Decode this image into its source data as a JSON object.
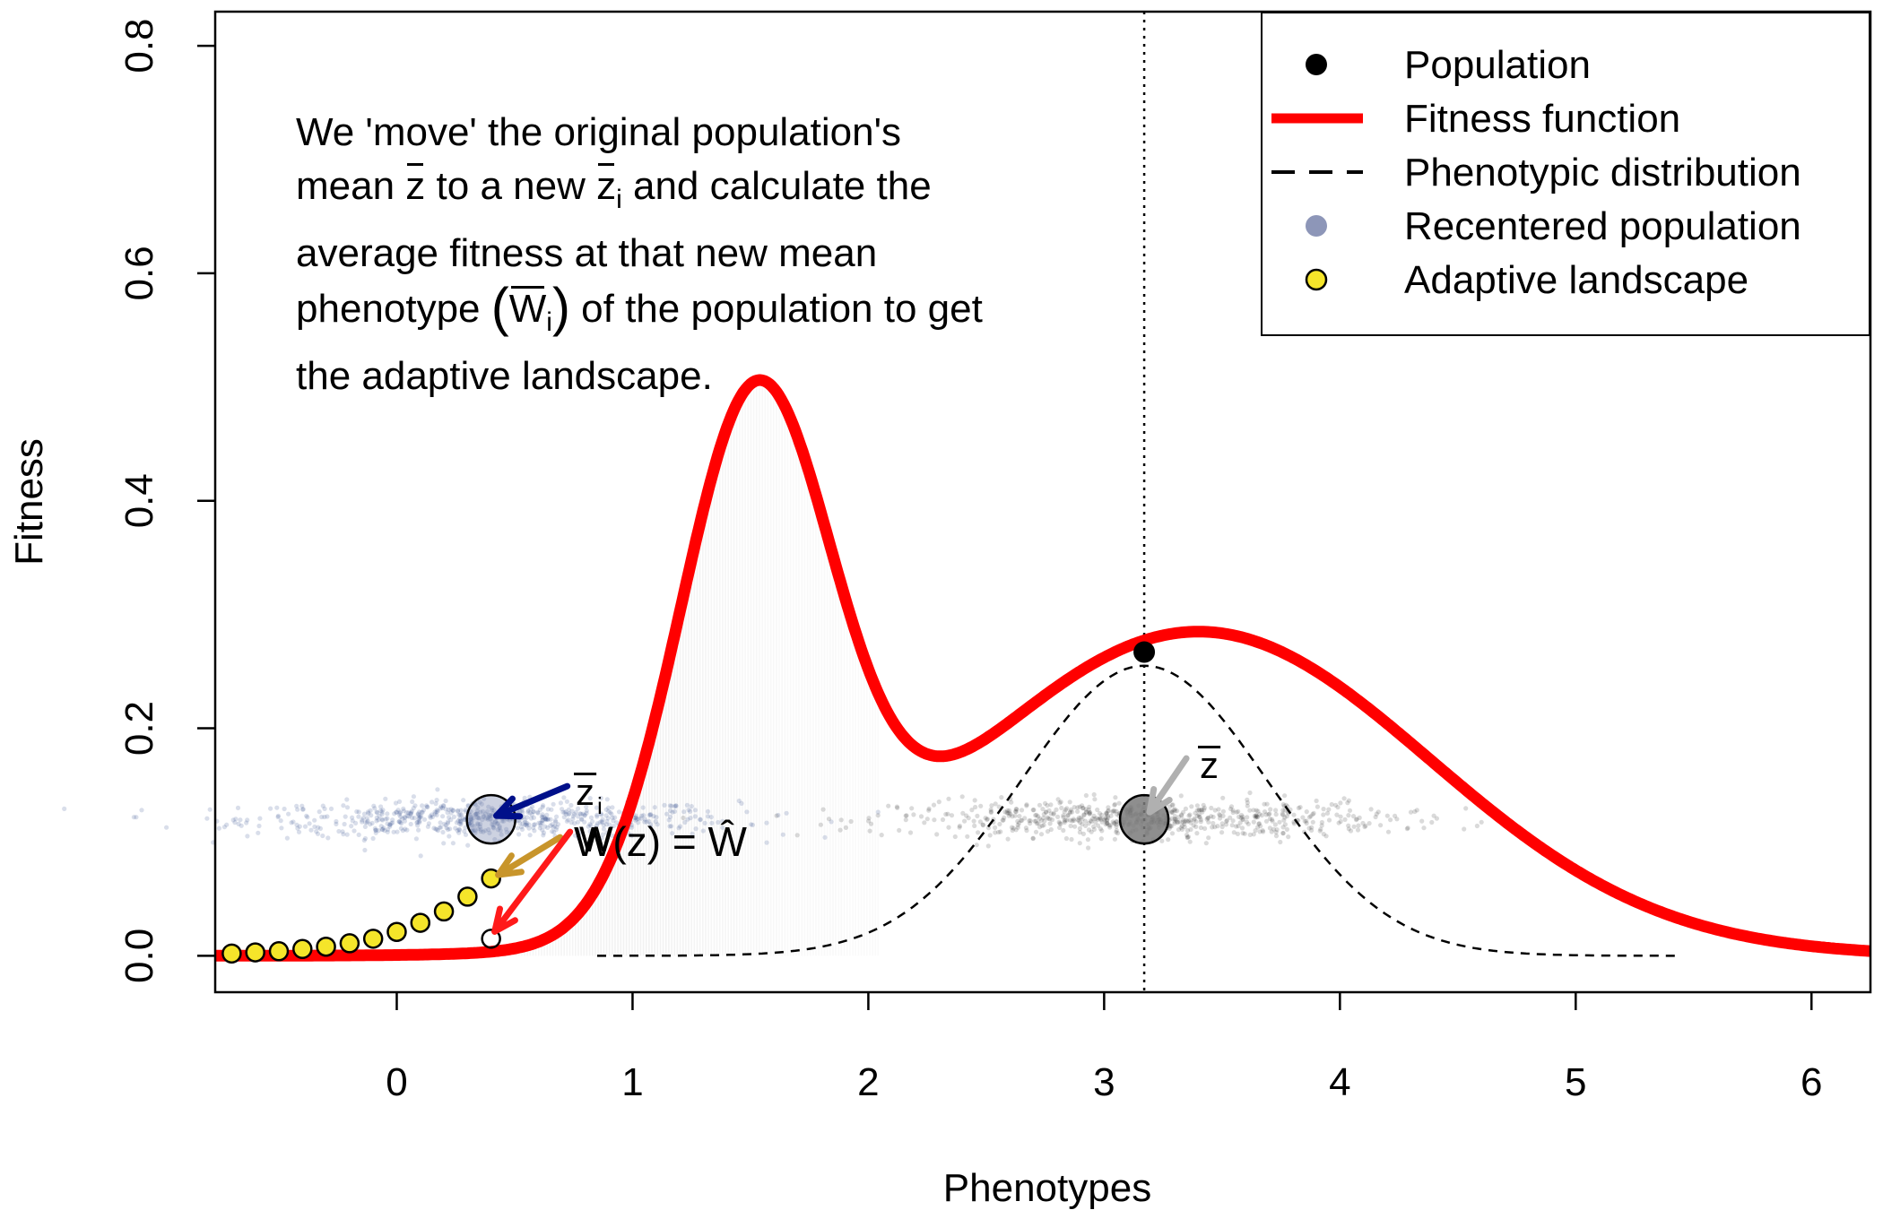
{
  "chart_data": {
    "type": "line",
    "xlabel": "Phenotypes",
    "ylabel": "Fitness",
    "xlim": [
      -0.77,
      6.25
    ],
    "ylim": [
      -0.032,
      0.83
    ],
    "x_ticks": [
      0,
      1,
      2,
      3,
      4,
      5,
      6
    ],
    "y_ticks": [
      0.0,
      0.2,
      0.4,
      0.6,
      0.8
    ],
    "x_tick_labels": [
      "0",
      "1",
      "2",
      "3",
      "4",
      "5",
      "6"
    ],
    "y_tick_labels": [
      "0.0",
      "0.2",
      "0.4",
      "0.6",
      "0.8"
    ],
    "fitness_function": {
      "components": [
        {
          "weight": 0.46,
          "mean": 1.52,
          "sd": 0.32
        },
        {
          "weight": 0.285,
          "mean": 3.4,
          "sd": 0.98
        }
      ]
    },
    "phenotypic_distribution": {
      "mean": 3.17,
      "sd": 0.52,
      "peak": 0.255,
      "x_range": [
        0.85,
        5.45
      ]
    },
    "population_mean": {
      "x": 3.17,
      "fitness": 0.267
    },
    "recentered_mean": {
      "x": 0.4,
      "fitness": 0.015
    },
    "adaptive_landscape_points": {
      "x": [
        -0.7,
        -0.6,
        -0.5,
        -0.4,
        -0.3,
        -0.2,
        -0.1,
        0.0,
        0.1,
        0.2,
        0.3,
        0.4
      ],
      "y": [
        0.002,
        0.003,
        0.004,
        0.006,
        0.008,
        0.011,
        0.015,
        0.021,
        0.029,
        0.039,
        0.052,
        0.068
      ]
    },
    "cloud_y": 0.12,
    "annotation": {
      "lines": [
        [
          "We 'move' the original population's"
        ],
        [
          "mean ",
          {
            "ovl": "z"
          },
          " to a new ",
          {
            "ovl": "z"
          },
          {
            "sub": "i"
          },
          " and calculate the"
        ],
        [
          "average fitness at that new mean"
        ],
        [
          "phenotype ",
          {
            "paren": "("
          },
          {
            "ovl": "W"
          },
          {
            "sub": "i"
          },
          {
            "paren": ")"
          },
          " of the population to get"
        ],
        [
          "the adaptive landscape."
        ]
      ]
    },
    "labels": {
      "z_bar": "z",
      "z_bar_i": "z",
      "z_bar_i_sub": "i",
      "overlap_label": "W(z) = Ŵ",
      "overlap_label_2": "W"
    },
    "legend": {
      "position": "top-right",
      "entries": [
        {
          "label": "Population",
          "key": "point",
          "color": "#000000"
        },
        {
          "label": "Fitness function",
          "key": "line",
          "color": "#ff0000"
        },
        {
          "label": "Phenotypic distribution",
          "key": "dashed",
          "color": "#000000"
        },
        {
          "label": "Recentered population",
          "key": "point",
          "color": "#8d96b8"
        },
        {
          "label": "Adaptive landscape",
          "key": "circle",
          "color": "#f5e52a"
        }
      ]
    },
    "colors": {
      "fitness": "#ff0000",
      "recentered": "#2c4a8a",
      "original_cloud": "#333333",
      "adaptive": "#f5e52a",
      "arrow_blue": "#00108a",
      "arrow_gold": "#c8952b",
      "arrow_red": "#ff1a1a",
      "arrow_grey": "#b0b0b0"
    }
  }
}
